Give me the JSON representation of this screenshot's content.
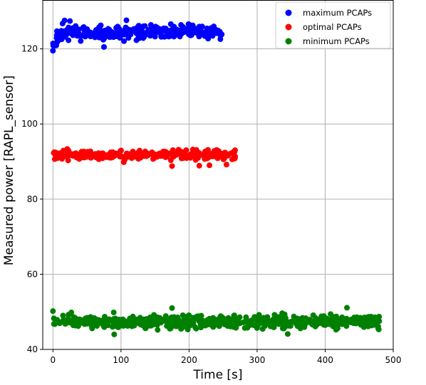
{
  "chart_data": {
    "type": "scatter",
    "xlabel": "Time [s]",
    "ylabel": "Measured power [RAPL_sensor]",
    "xlim": [
      -15,
      500
    ],
    "ylim": [
      40,
      133
    ],
    "xticks": [
      0,
      100,
      200,
      300,
      400,
      500
    ],
    "yticks": [
      40,
      60,
      80,
      100,
      120
    ],
    "grid": true,
    "legend_position": "top-right",
    "series": [
      {
        "name": "maximum PCAPs",
        "color": "#0000ff",
        "x_range": [
          0,
          248
        ],
        "y_center": 124.5,
        "y_spread": 1.6,
        "n_points": 300,
        "seed": 11,
        "points": [
          [
            0,
            119.5
          ],
          [
            2,
            120.8
          ],
          [
            5,
            121.6
          ],
          [
            8,
            122.2
          ],
          [
            12,
            122.8
          ],
          [
            18,
            123.2
          ],
          [
            25,
            127.4
          ],
          [
            75,
            120.5
          ],
          [
            108,
            127.6
          ],
          [
            245,
            124.0
          ]
        ]
      },
      {
        "name": "optimal PCAPs",
        "color": "#ff0000",
        "x_range": [
          0,
          268
        ],
        "y_center": 91.8,
        "y_spread": 0.9,
        "n_points": 330,
        "seed": 23,
        "points": [
          [
            2,
            92.5
          ],
          [
            175,
            88.8
          ],
          [
            215,
            88.9
          ],
          [
            230,
            89.0
          ],
          [
            255,
            89.2
          ],
          [
            267,
            90.8
          ]
        ]
      },
      {
        "name": "minimum PCAPs",
        "color": "#008000",
        "x_range": [
          0,
          480
        ],
        "y_center": 47.3,
        "y_spread": 1.4,
        "n_points": 560,
        "seed": 37,
        "points": [
          [
            0,
            50.2
          ],
          [
            25,
            49.4
          ],
          [
            90,
            44.0
          ],
          [
            175,
            51.0
          ],
          [
            345,
            44.1
          ],
          [
            432,
            51.1
          ],
          [
            478,
            45.5
          ]
        ]
      }
    ]
  }
}
